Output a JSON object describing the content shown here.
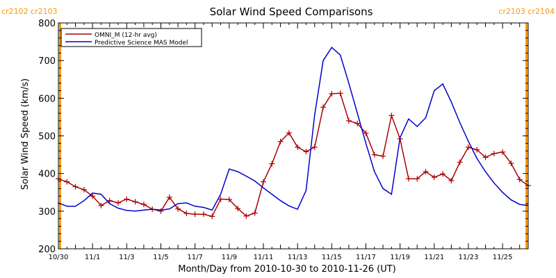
{
  "chart_data": {
    "type": "line",
    "title": "Solar Wind Speed Comparisons",
    "xlabel": "Month/Day from 2010-10-30 to 2010-11-26 (UT)",
    "ylabel": "Solar Wind Speed (km/s)",
    "xlim_days": [
      0,
      27.5
    ],
    "ylim": [
      200,
      800
    ],
    "yticks": [
      200,
      300,
      400,
      500,
      600,
      700,
      800
    ],
    "xticks": [
      {
        "label": "10/30",
        "day": 0
      },
      {
        "label": "11/1",
        "day": 2
      },
      {
        "label": "11/3",
        "day": 4
      },
      {
        "label": "11/5",
        "day": 6
      },
      {
        "label": "11/7",
        "day": 8
      },
      {
        "label": "11/9",
        "day": 10
      },
      {
        "label": "11/11",
        "day": 12
      },
      {
        "label": "11/13",
        "day": 14
      },
      {
        "label": "11/15",
        "day": 16
      },
      {
        "label": "11/17",
        "day": 18
      },
      {
        "label": "11/19",
        "day": 20
      },
      {
        "label": "11/21",
        "day": 22
      },
      {
        "label": "11/23",
        "day": 24
      },
      {
        "label": "11/25",
        "day": 26
      }
    ],
    "grid": false,
    "legend_position": "top-left",
    "rotation_markers": [
      {
        "day": 0.1,
        "label": "cr2102 cr2103",
        "side": "left",
        "color": "#ff9900"
      },
      {
        "day": 27.4,
        "label": "cr2103 cr2104",
        "side": "right",
        "color": "#ff9900"
      }
    ],
    "series": [
      {
        "name": "OMNI_M (12-hr avg)",
        "color": "#aa0000",
        "marker": "plus",
        "x": [
          0.0,
          0.5,
          1.0,
          1.5,
          2.0,
          2.5,
          3.0,
          3.5,
          4.0,
          4.5,
          5.0,
          5.5,
          6.0,
          6.5,
          7.0,
          7.5,
          8.0,
          8.5,
          9.0,
          9.5,
          10.0,
          10.5,
          11.0,
          11.5,
          12.0,
          12.5,
          13.0,
          13.5,
          14.0,
          14.5,
          15.0,
          15.5,
          16.0,
          16.5,
          17.0,
          17.5,
          18.0,
          18.5,
          19.0,
          19.5,
          20.0,
          20.5,
          21.0,
          21.5,
          22.0,
          22.5,
          23.0,
          23.5,
          24.0,
          24.5,
          25.0,
          25.5,
          26.0,
          26.5,
          27.0,
          27.5
        ],
        "values": [
          386,
          378,
          365,
          357,
          340,
          315,
          328,
          322,
          332,
          325,
          318,
          305,
          300,
          337,
          306,
          294,
          292,
          292,
          286,
          332,
          331,
          307,
          287,
          295,
          378,
          426,
          485,
          508,
          470,
          458,
          470,
          576,
          612,
          613,
          540,
          533,
          507,
          450,
          446,
          554,
          492,
          386,
          386,
          405,
          390,
          399,
          381,
          430,
          470,
          463,
          443,
          453,
          457,
          427,
          384,
          368
        ]
      },
      {
        "name": "Predictive Science MAS Model",
        "color": "#0000cc",
        "marker": "none",
        "x": [
          0.0,
          0.5,
          1.0,
          1.5,
          2.0,
          2.5,
          3.0,
          3.5,
          4.0,
          4.5,
          5.0,
          5.5,
          6.0,
          6.5,
          7.0,
          7.5,
          8.0,
          8.5,
          9.0,
          9.5,
          10.0,
          10.5,
          11.0,
          11.5,
          12.0,
          12.5,
          13.0,
          13.5,
          14.0,
          14.5,
          15.0,
          15.5,
          16.0,
          16.5,
          17.0,
          17.5,
          18.0,
          18.5,
          19.0,
          19.5,
          20.0,
          20.5,
          21.0,
          21.5,
          22.0,
          22.5,
          23.0,
          23.5,
          24.0,
          24.5,
          25.0,
          25.5,
          26.0,
          26.5,
          27.0,
          27.5
        ],
        "values": [
          322,
          313,
          313,
          328,
          348,
          345,
          320,
          308,
          302,
          300,
          303,
          305,
          303,
          306,
          320,
          322,
          313,
          310,
          303,
          345,
          412,
          405,
          393,
          380,
          362,
          345,
          328,
          314,
          305,
          355,
          555,
          700,
          735,
          715,
          640,
          560,
          480,
          405,
          360,
          345,
          495,
          545,
          525,
          548,
          620,
          638,
          590,
          535,
          485,
          440,
          405,
          375,
          350,
          330,
          318,
          315
        ]
      }
    ]
  }
}
